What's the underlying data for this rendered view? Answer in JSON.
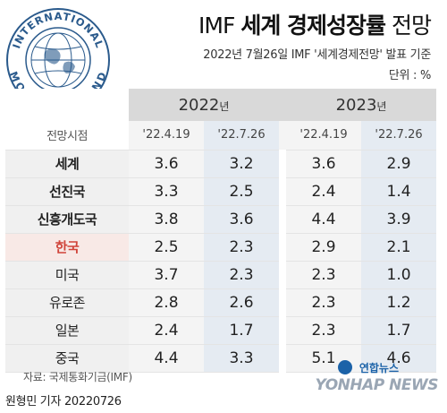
{
  "logo": {
    "text_top": "INTERNATIONAL",
    "text_bottom": "MONETARY FUND"
  },
  "title": {
    "prefix": "IMF ",
    "bold": "세계 경제성장률",
    "suffix": " 전망"
  },
  "subtitle": "2022년 7월26일 IMF '세계경제전망' 발표 기준",
  "unit": "단위 : %",
  "years": [
    {
      "year": "2022",
      "suffix": "년"
    },
    {
      "year": "2023",
      "suffix": "년"
    }
  ],
  "header": {
    "label": "전망시점",
    "dates": [
      "'22.4.19",
      "'22.7.26",
      "'22.4.19",
      "'22.7.26"
    ]
  },
  "rows": [
    {
      "name": "세계",
      "values": [
        "3.6",
        "3.2",
        "3.6",
        "2.9"
      ],
      "bold": true
    },
    {
      "name": "선진국",
      "values": [
        "3.3",
        "2.5",
        "2.4",
        "1.4"
      ],
      "bold": true
    },
    {
      "name": "신흥개도국",
      "values": [
        "3.8",
        "3.6",
        "4.4",
        "3.9"
      ],
      "bold": true
    },
    {
      "name": "한국",
      "values": [
        "2.5",
        "2.3",
        "2.9",
        "2.1"
      ],
      "highlight": true
    },
    {
      "name": "미국",
      "values": [
        "3.7",
        "2.3",
        "2.3",
        "1.0"
      ]
    },
    {
      "name": "유로존",
      "values": [
        "2.8",
        "2.6",
        "2.3",
        "1.2"
      ]
    },
    {
      "name": "일본",
      "values": [
        "2.4",
        "1.7",
        "2.3",
        "1.7"
      ]
    },
    {
      "name": "중국",
      "values": [
        "4.4",
        "3.3",
        "5.1",
        "4.6"
      ]
    }
  ],
  "source": "자료: 국제통화기금(IMF)",
  "byline": "원형민 기자  20220726",
  "watermark": {
    "kr": "연합뉴스",
    "en": "YONHAP NEWS"
  },
  "colors": {
    "jul_column": "#e5ebf2",
    "korea_highlight": "#d0443a",
    "year_header": "#d9d9d9",
    "yonhap_blue": "#1b62a8"
  }
}
